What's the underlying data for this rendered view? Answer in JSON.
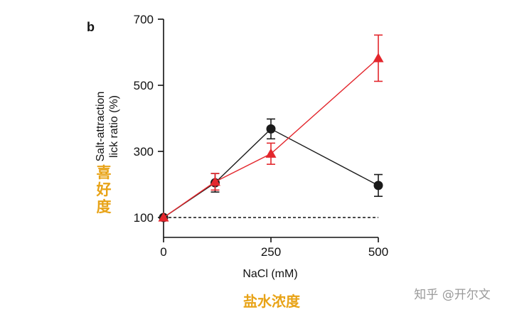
{
  "panel_label": "b",
  "annotations": {
    "y_cn": [
      "喜",
      "好",
      "度"
    ],
    "x_cn": "盐水浓度",
    "watermark": "知乎 @开尔文"
  },
  "colors": {
    "series_black": "#1a1a1a",
    "series_red": "#e3262c",
    "annotation": "#e8a317"
  },
  "chart_data": {
    "type": "line",
    "xlabel": "NaCl (mM)",
    "ylabel_lines": [
      "Salt-attraction",
      "lick ratio (%)"
    ],
    "xlim": [
      0,
      500
    ],
    "ylim": [
      50,
      700
    ],
    "xticks": [
      0,
      250,
      500
    ],
    "yticks": [
      100,
      300,
      500,
      700
    ],
    "reference_line": {
      "y": 100,
      "style": "dashed"
    },
    "series": [
      {
        "marker": "circle",
        "color": "#1a1a1a",
        "x": [
          0,
          120,
          250,
          500
        ],
        "y": [
          100,
          205,
          368,
          197
        ],
        "err": [
          0,
          28,
          30,
          33
        ]
      },
      {
        "marker": "triangle",
        "color": "#e3262c",
        "x": [
          0,
          120,
          250,
          500
        ],
        "y": [
          100,
          208,
          293,
          582
        ],
        "err": [
          0,
          25,
          32,
          70
        ]
      }
    ]
  }
}
